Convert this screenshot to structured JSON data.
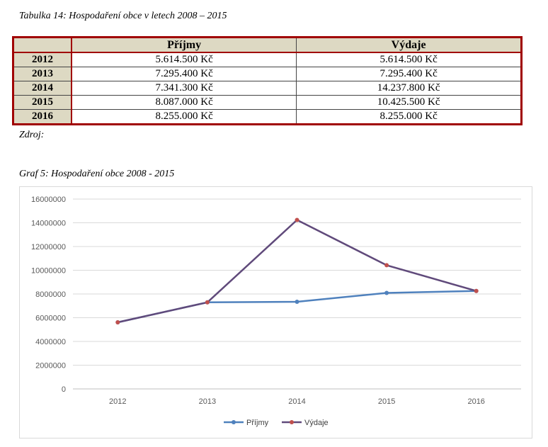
{
  "table_caption": "Tabulka 14: Hospodaření obce v letech 2008 – 2015",
  "table": {
    "headers": [
      "",
      "Příjmy",
      "Výdaje"
    ],
    "rows": [
      {
        "year": "2012",
        "income": "5.614.500 Kč",
        "expense": "5.614.500 Kč"
      },
      {
        "year": "2013",
        "income": "7.295.400 Kč",
        "expense": "7.295.400 Kč"
      },
      {
        "year": "2014",
        "income": "7.341.300 Kč",
        "expense": "14.237.800 Kč"
      },
      {
        "year": "2015",
        "income": "8.087.000 Kč",
        "expense": "10.425.500 Kč"
      },
      {
        "year": "2016",
        "income": "8.255.000 Kč",
        "expense": "8.255.000 Kč"
      }
    ]
  },
  "source_note": "Zdroj:",
  "chart_caption": "Graf 5: Hospodaření obce 2008 - 2015",
  "chart_data": {
    "type": "line",
    "categories": [
      "2012",
      "2013",
      "2014",
      "2015",
      "2016"
    ],
    "series": [
      {
        "name": "Příjmy",
        "values": [
          5614500,
          7295400,
          7341300,
          8087000,
          8255000
        ],
        "color": "#4f81bd",
        "marker_color": "#4f81bd"
      },
      {
        "name": "Výdaje",
        "values": [
          5614500,
          7295400,
          14237800,
          10425500,
          8255000
        ],
        "color": "#604a7b",
        "marker_color": "#c0504d"
      }
    ],
    "ylim": [
      0,
      16000000
    ],
    "yticks": [
      0,
      2000000,
      4000000,
      6000000,
      8000000,
      10000000,
      12000000,
      14000000,
      16000000
    ],
    "grid": true,
    "legend": "bottom"
  }
}
